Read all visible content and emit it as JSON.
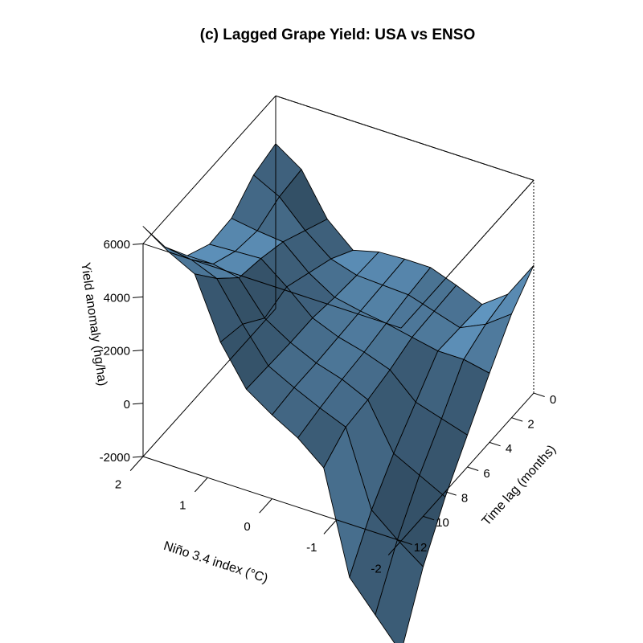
{
  "chart_data": {
    "type": "surface",
    "title": "(c) Lagged Grape Yield: USA vs ENSO",
    "x_axis": {
      "label": "Niño 3.4 index (°C)",
      "range": [
        -2,
        2
      ],
      "ticks": [
        2,
        1,
        0,
        -1,
        -2
      ]
    },
    "y_axis": {
      "label": "Time lag (months)",
      "range": [
        0,
        12
      ],
      "ticks": [
        0,
        2,
        4,
        6,
        8,
        10,
        12
      ]
    },
    "z_axis": {
      "label": "Yield anomaly (hg/ha)",
      "range": [
        -2000,
        6000
      ],
      "ticks": [
        -2000,
        0,
        2000,
        4000,
        6000
      ]
    },
    "surface_color": "#5b8db5",
    "grid_x": [
      -2,
      -1.6,
      -1.2,
      -0.8,
      -0.4,
      0,
      0.4,
      0.8,
      1.2,
      1.6,
      2
    ],
    "grid_lag": [
      0,
      2,
      4,
      6,
      8,
      10,
      12
    ],
    "z": [
      [
        2800,
        1400,
        700,
        1100,
        1450,
        1450,
        1400,
        1150,
        2000,
        3550,
        4200
      ],
      [
        1900,
        1200,
        750,
        1050,
        1350,
        1400,
        1450,
        1750,
        2500,
        3450,
        3950
      ],
      [
        600,
        800,
        800,
        1000,
        1200,
        1350,
        1550,
        2150,
        3000,
        3100,
        3250
      ],
      [
        -800,
        -500,
        -200,
        700,
        1050,
        1300,
        1700,
        2550,
        3300,
        3250,
        3200
      ],
      [
        -2200,
        -1700,
        -1200,
        500,
        950,
        1250,
        1700,
        2300,
        3500,
        3700,
        3700
      ],
      [
        -3900,
        -3200,
        -2400,
        400,
        800,
        1250,
        1750,
        3000,
        4400,
        4800,
        4950
      ],
      [
        -6200,
        -5100,
        -4000,
        -200,
        600,
        1150,
        1800,
        3250,
        5500,
        6000,
        6650
      ]
    ]
  }
}
